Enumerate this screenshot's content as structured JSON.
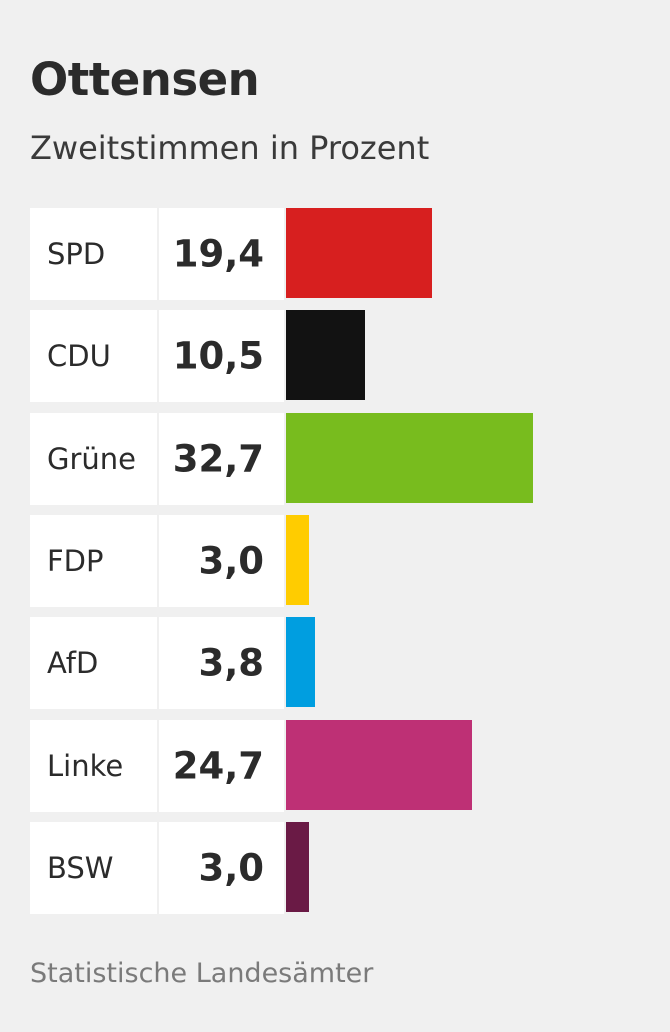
{
  "title": "Ottensen",
  "subtitle": "Zweitstimmen in Prozent",
  "source": "Statistische Landesämter",
  "chart_data": {
    "type": "bar",
    "orientation": "horizontal",
    "title": "Ottensen",
    "subtitle": "Zweitstimmen in Prozent",
    "xlim": [
      0,
      40
    ],
    "categories": [
      "SPD",
      "CDU",
      "Grüne",
      "FDP",
      "AfD",
      "Linke",
      "BSW"
    ],
    "values": [
      19.4,
      10.5,
      32.7,
      3.0,
      3.8,
      24.7,
      3.0
    ],
    "value_labels": [
      "19,4",
      "10,5",
      "32,7",
      "3,0",
      "3,8",
      "24,7",
      "3,0"
    ],
    "colors": [
      "#d71f1f",
      "#121212",
      "#78bc1e",
      "#ffcc00",
      "#009ee0",
      "#be3075",
      "#6a1a45"
    ],
    "grid": false,
    "legend": "none"
  }
}
